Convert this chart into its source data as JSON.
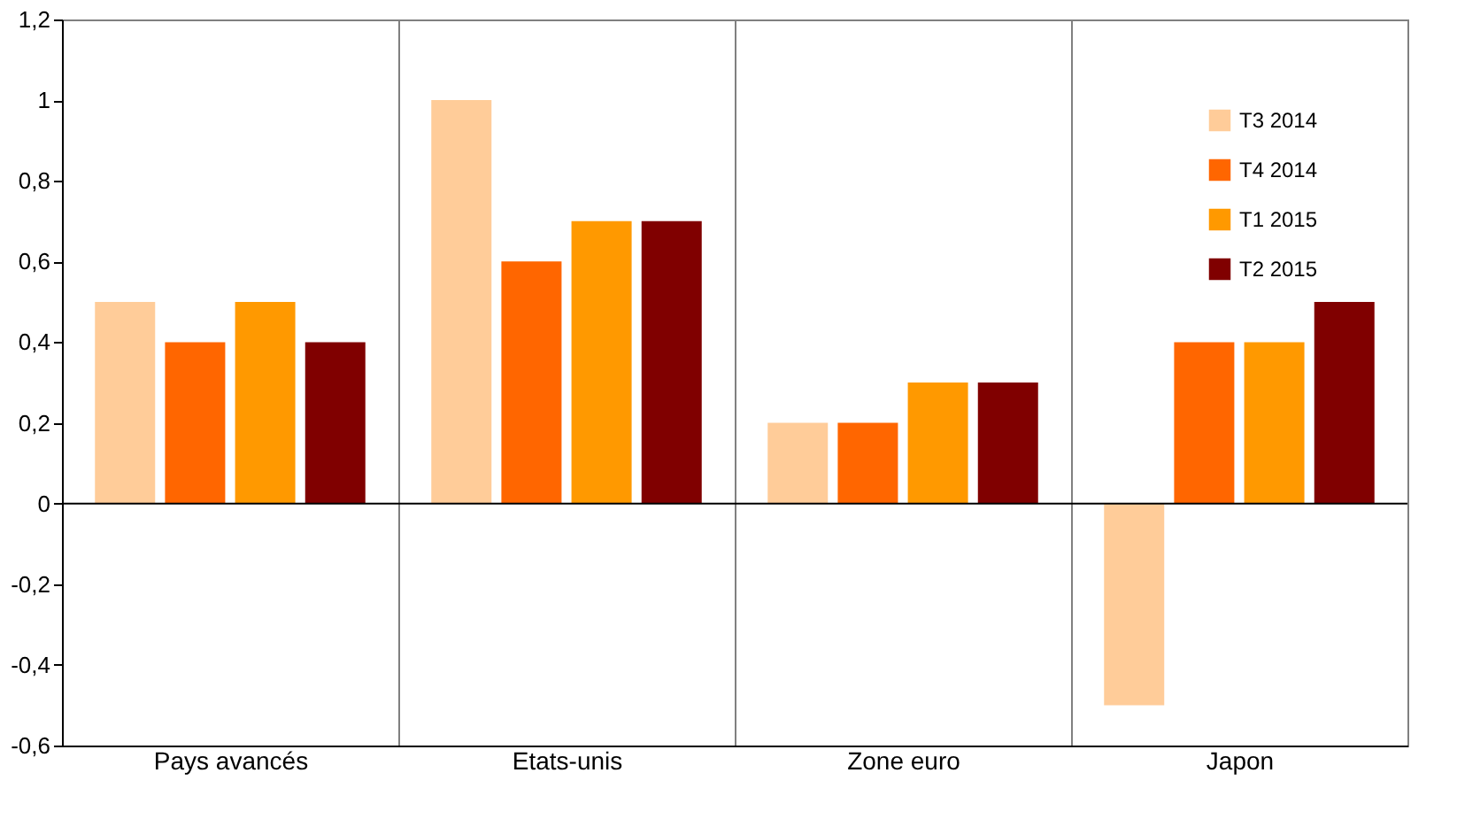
{
  "chart_data": {
    "type": "bar",
    "categories": [
      "Pays avancés",
      "Etats-unis",
      "Zone euro",
      "Japon"
    ],
    "series": [
      {
        "name": "T3 2014",
        "color": "#ffcc99",
        "values": [
          0.5,
          1.0,
          0.2,
          -0.5
        ]
      },
      {
        "name": "T4 2014",
        "color": "#ff6600",
        "values": [
          0.4,
          0.6,
          0.2,
          0.4
        ]
      },
      {
        "name": "T1 2015",
        "color": "#ff9900",
        "values": [
          0.5,
          0.7,
          0.3,
          0.4
        ]
      },
      {
        "name": "T2 2015",
        "color": "#800000",
        "values": [
          0.4,
          0.7,
          0.3,
          0.5
        ]
      }
    ],
    "ylim": [
      -0.6,
      1.2
    ],
    "yticks": [
      {
        "value": -0.6,
        "label": "-0,6"
      },
      {
        "value": -0.4,
        "label": "-0,4"
      },
      {
        "value": -0.2,
        "label": "-0,2"
      },
      0,
      {
        "value": 0.2,
        "label": "0,2"
      },
      {
        "value": 0.4,
        "label": "0,4"
      },
      {
        "value": 0.6,
        "label": "0,6"
      },
      {
        "value": 0.8,
        "label": "0,8"
      },
      1,
      {
        "value": 1.2,
        "label": "1,2"
      }
    ],
    "ref_lines": [
      {
        "axis": "y",
        "value": 0,
        "color": "#000000"
      }
    ],
    "grid": "x",
    "legend": "top right"
  }
}
